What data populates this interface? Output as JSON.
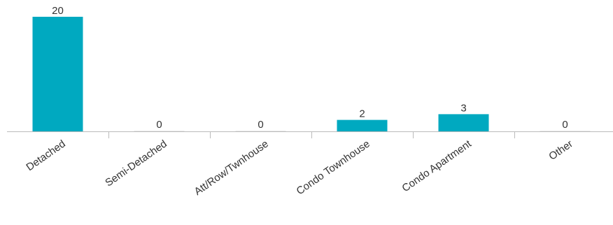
{
  "chart_data": {
    "type": "bar",
    "title": "",
    "xlabel": "",
    "ylabel": "",
    "categories": [
      "Detached",
      "Semi-Detached",
      "Att/Row/Twnhouse",
      "Condo Townhouse",
      "Condo Apartment",
      "Other"
    ],
    "values": [
      20,
      0,
      0,
      2,
      3,
      0
    ],
    "ylim": [
      0,
      20
    ],
    "grid": false,
    "legend": "none",
    "bar_color": "#00a9c0",
    "axis_color": "#bbbbbb",
    "text_color": "#333333"
  }
}
